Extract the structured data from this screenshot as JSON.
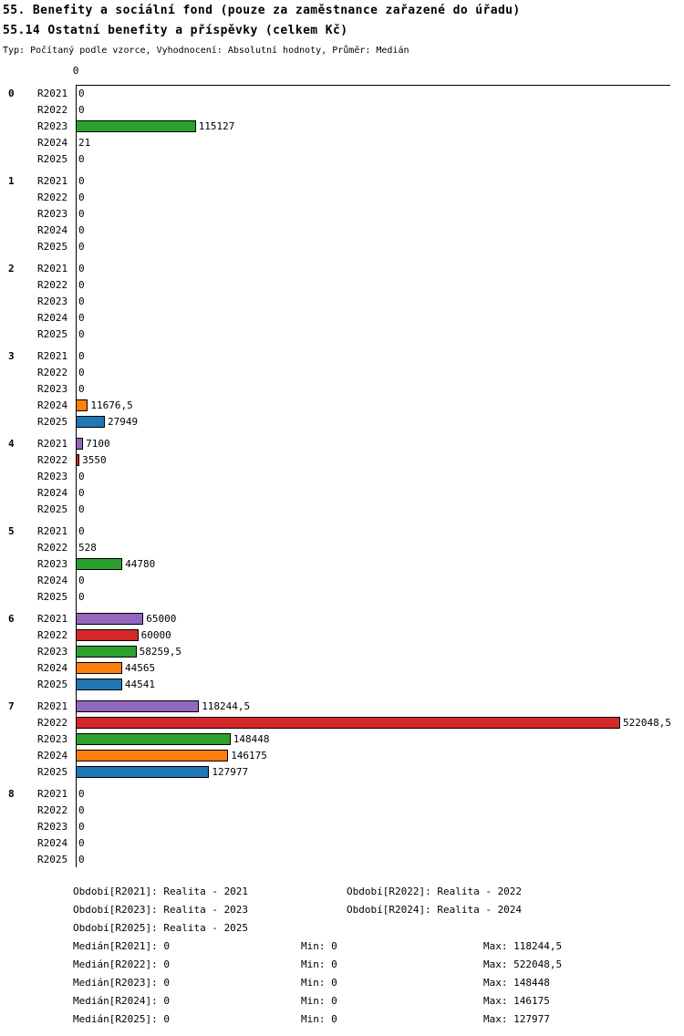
{
  "header": {
    "title": "55. Benefity a sociální fond (pouze za zaměstnance zařazené do úřadu)",
    "subtitle": "55.14 Ostatní benefity a příspěvky (celkem Kč)",
    "meta": "Typ: Počítaný podle vzorce, Vyhodnocení: Absolutní hodnoty, Průměr: Medián"
  },
  "chart_data": {
    "type": "bar",
    "orientation": "horizontal",
    "axis_tick": "0",
    "xlim": [
      0,
      560000
    ],
    "series": [
      "R2021",
      "R2022",
      "R2023",
      "R2024",
      "R2025"
    ],
    "colors": [
      "#9467bd",
      "#d62728",
      "#2ca02c",
      "#ff7f0e",
      "#1f77b4"
    ],
    "groups": [
      {
        "label": "0",
        "values": [
          0,
          0,
          115127,
          21,
          0
        ],
        "value_labels": [
          "0",
          "0",
          "115127",
          "21",
          "0"
        ]
      },
      {
        "label": "1",
        "values": [
          0,
          0,
          0,
          0,
          0
        ],
        "value_labels": [
          "0",
          "0",
          "0",
          "0",
          "0"
        ]
      },
      {
        "label": "2",
        "values": [
          0,
          0,
          0,
          0,
          0
        ],
        "value_labels": [
          "0",
          "0",
          "0",
          "0",
          "0"
        ]
      },
      {
        "label": "3",
        "values": [
          0,
          0,
          0,
          11676.5,
          27949
        ],
        "value_labels": [
          "0",
          "0",
          "0",
          "11676,5",
          "27949"
        ]
      },
      {
        "label": "4",
        "values": [
          7100,
          3550,
          0,
          0,
          0
        ],
        "value_labels": [
          "7100",
          "3550",
          "0",
          "0",
          "0"
        ]
      },
      {
        "label": "5",
        "values": [
          0,
          528,
          44780,
          0,
          0
        ],
        "value_labels": [
          "0",
          "528",
          "44780",
          "0",
          "0"
        ]
      },
      {
        "label": "6",
        "values": [
          65000,
          60000,
          58259.5,
          44565,
          44541
        ],
        "value_labels": [
          "65000",
          "60000",
          "58259,5",
          "44565",
          "44541"
        ]
      },
      {
        "label": "7",
        "values": [
          118244.5,
          522048.5,
          148448,
          146175,
          127977
        ],
        "value_labels": [
          "118244,5",
          "522048,5",
          "148448",
          "146175",
          "127977"
        ]
      },
      {
        "label": "8",
        "values": [
          0,
          0,
          0,
          0,
          0
        ],
        "value_labels": [
          "0",
          "0",
          "0",
          "0",
          "0"
        ]
      }
    ]
  },
  "footer": {
    "periods": [
      {
        "label": "Období[R2021]:",
        "value": "Realita - 2021"
      },
      {
        "label": "Období[R2022]:",
        "value": "Realita - 2022"
      },
      {
        "label": "Období[R2023]:",
        "value": "Realita - 2023"
      },
      {
        "label": "Období[R2024]:",
        "value": "Realita - 2024"
      },
      {
        "label": "Období[R2025]:",
        "value": "Realita - 2025"
      }
    ],
    "stats": [
      {
        "median_label": "Medián[R2021]:",
        "median": "0",
        "min_label": "Min:",
        "min": "0",
        "max_label": "Max:",
        "max": "118244,5"
      },
      {
        "median_label": "Medián[R2022]:",
        "median": "0",
        "min_label": "Min:",
        "min": "0",
        "max_label": "Max:",
        "max": "522048,5"
      },
      {
        "median_label": "Medián[R2023]:",
        "median": "0",
        "min_label": "Min:",
        "min": "0",
        "max_label": "Max:",
        "max": "148448"
      },
      {
        "median_label": "Medián[R2024]:",
        "median": "0",
        "min_label": "Min:",
        "min": "0",
        "max_label": "Max:",
        "max": "146175"
      },
      {
        "median_label": "Medián[R2025]:",
        "median": "0",
        "min_label": "Min:",
        "min": "0",
        "max_label": "Max:",
        "max": "127977"
      }
    ]
  }
}
